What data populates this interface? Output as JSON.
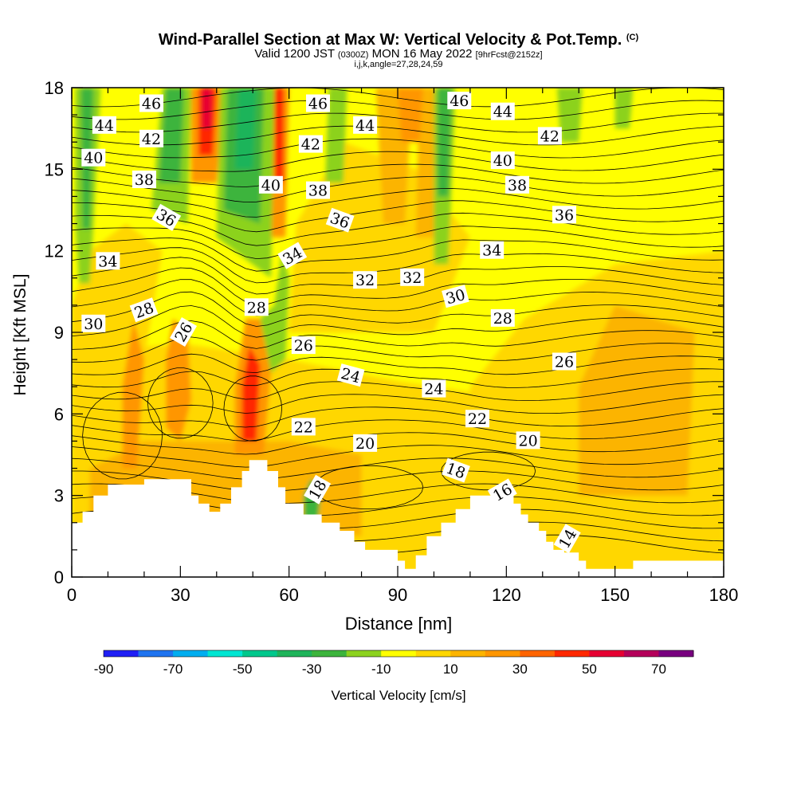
{
  "title": {
    "main": "Wind-Parallel Section at Max W: Vertical Velocity & Pot.Temp.",
    "copyright": "(C)",
    "valid": "Valid 1200 JST",
    "utc": "(0300Z)",
    "date": "MON 16 May 2022",
    "fcst": "[9hrFcst@2152z]",
    "indices": "i,j,k,angle=27,28,24,59"
  },
  "chart_data": {
    "type": "heatmap",
    "xlabel": "Distance [nm]",
    "ylabel": "Height [Kft MSL]",
    "xlim": [
      0,
      180
    ],
    "ylim": [
      0,
      18
    ],
    "x_ticks": [
      0,
      30,
      60,
      90,
      120,
      150,
      180
    ],
    "y_ticks": [
      0,
      3,
      6,
      9,
      12,
      15,
      18
    ],
    "colorbar": {
      "label": "Vertical Velocity [cm/s]",
      "bounds": [
        -90,
        -80,
        -70,
        -60,
        -50,
        -40,
        -30,
        -20,
        -10,
        0,
        10,
        20,
        30,
        40,
        50,
        60,
        70,
        80
      ],
      "tick_labels": [
        -90,
        -70,
        -50,
        -30,
        -10,
        10,
        30,
        50,
        70
      ],
      "colors": [
        "#1f1ff5",
        "#1f74f0",
        "#00aef0",
        "#00e6d2",
        "#00c88c",
        "#1eb45a",
        "#3cb43c",
        "#8cd21e",
        "#ffff00",
        "#ffd700",
        "#fcb400",
        "#ff9600",
        "#ff6400",
        "#ff2800",
        "#e60032",
        "#b4005a",
        "#78007f"
      ]
    },
    "terrain": [
      [
        0,
        2.0
      ],
      [
        3,
        2.0
      ],
      [
        3,
        2.4
      ],
      [
        6,
        2.4
      ],
      [
        6,
        3.0
      ],
      [
        10,
        3.0
      ],
      [
        10,
        3.4
      ],
      [
        20,
        3.4
      ],
      [
        20,
        3.6
      ],
      [
        33,
        3.6
      ],
      [
        33,
        3.0
      ],
      [
        35,
        3.0
      ],
      [
        35,
        2.7
      ],
      [
        38,
        2.7
      ],
      [
        38,
        2.4
      ],
      [
        41,
        2.4
      ],
      [
        41,
        2.7
      ],
      [
        44,
        2.7
      ],
      [
        44,
        3.3
      ],
      [
        47,
        3.3
      ],
      [
        47,
        3.9
      ],
      [
        49,
        3.9
      ],
      [
        49,
        4.3
      ],
      [
        54,
        4.3
      ],
      [
        54,
        3.9
      ],
      [
        57,
        3.9
      ],
      [
        57,
        3.3
      ],
      [
        59,
        3.3
      ],
      [
        59,
        2.7
      ],
      [
        64,
        2.7
      ],
      [
        64,
        2.3
      ],
      [
        69,
        2.3
      ],
      [
        69,
        2.0
      ],
      [
        74,
        2.0
      ],
      [
        74,
        1.7
      ],
      [
        78,
        1.7
      ],
      [
        78,
        1.3
      ],
      [
        81,
        1.3
      ],
      [
        81,
        1.0
      ],
      [
        90,
        1.0
      ],
      [
        90,
        0.6
      ],
      [
        92,
        0.6
      ],
      [
        92,
        0.3
      ],
      [
        95,
        0.3
      ],
      [
        95,
        0.8
      ],
      [
        98,
        0.8
      ],
      [
        98,
        1.5
      ],
      [
        102,
        1.5
      ],
      [
        102,
        2.0
      ],
      [
        106,
        2.0
      ],
      [
        106,
        2.5
      ],
      [
        110,
        2.5
      ],
      [
        110,
        3.0
      ],
      [
        122,
        3.0
      ],
      [
        122,
        2.7
      ],
      [
        124,
        2.7
      ],
      [
        124,
        2.3
      ],
      [
        126,
        2.3
      ],
      [
        126,
        2.0
      ],
      [
        129,
        2.0
      ],
      [
        129,
        1.7
      ],
      [
        131,
        1.7
      ],
      [
        131,
        1.3
      ],
      [
        133,
        1.3
      ],
      [
        133,
        1.0
      ],
      [
        136,
        1.0
      ],
      [
        136,
        0.9
      ],
      [
        140,
        0.9
      ],
      [
        140,
        0.6
      ],
      [
        142,
        0.6
      ],
      [
        142,
        0.3
      ],
      [
        155,
        0.3
      ],
      [
        155,
        0.6
      ],
      [
        180,
        0.6
      ]
    ],
    "contours": {
      "variable": "Potential Temperature",
      "labels": [
        {
          "text": "46",
          "x": 22,
          "y": 17.4,
          "rot": 0
        },
        {
          "text": "44",
          "x": 9,
          "y": 16.6,
          "rot": 0
        },
        {
          "text": "42",
          "x": 22,
          "y": 16.1,
          "rot": 0
        },
        {
          "text": "40",
          "x": 6,
          "y": 15.4,
          "rot": 0
        },
        {
          "text": "38",
          "x": 20,
          "y": 14.6,
          "rot": 0
        },
        {
          "text": "36",
          "x": 26,
          "y": 13.2,
          "rot": 30
        },
        {
          "text": "34",
          "x": 10,
          "y": 11.6,
          "rot": 0
        },
        {
          "text": "28",
          "x": 20,
          "y": 9.8,
          "rot": -20
        },
        {
          "text": "30",
          "x": 6,
          "y": 9.3,
          "rot": 0
        },
        {
          "text": "26",
          "x": 31,
          "y": 9.0,
          "rot": -60
        },
        {
          "text": "46",
          "x": 68,
          "y": 17.4,
          "rot": 0
        },
        {
          "text": "42",
          "x": 66,
          "y": 15.9,
          "rot": 0
        },
        {
          "text": "44",
          "x": 81,
          "y": 16.6,
          "rot": 0
        },
        {
          "text": "40",
          "x": 55,
          "y": 14.4,
          "rot": 0
        },
        {
          "text": "38",
          "x": 68,
          "y": 14.2,
          "rot": 0
        },
        {
          "text": "36",
          "x": 74,
          "y": 13.1,
          "rot": 20
        },
        {
          "text": "34",
          "x": 61,
          "y": 11.8,
          "rot": -30
        },
        {
          "text": "28",
          "x": 51,
          "y": 9.9,
          "rot": 0
        },
        {
          "text": "32",
          "x": 81,
          "y": 10.9,
          "rot": 0
        },
        {
          "text": "32",
          "x": 94,
          "y": 11.0,
          "rot": 0
        },
        {
          "text": "26",
          "x": 64,
          "y": 8.5,
          "rot": 0
        },
        {
          "text": "24",
          "x": 77,
          "y": 7.4,
          "rot": 15
        },
        {
          "text": "24",
          "x": 100,
          "y": 6.9,
          "rot": 0
        },
        {
          "text": "22",
          "x": 64,
          "y": 5.5,
          "rot": 0
        },
        {
          "text": "20",
          "x": 81,
          "y": 4.9,
          "rot": 0
        },
        {
          "text": "18",
          "x": 68,
          "y": 3.2,
          "rot": -60
        },
        {
          "text": "46",
          "x": 107,
          "y": 17.5,
          "rot": 0
        },
        {
          "text": "44",
          "x": 119,
          "y": 17.1,
          "rot": 0
        },
        {
          "text": "42",
          "x": 132,
          "y": 16.2,
          "rot": 0
        },
        {
          "text": "40",
          "x": 119,
          "y": 15.3,
          "rot": 0
        },
        {
          "text": "38",
          "x": 123,
          "y": 14.4,
          "rot": 0
        },
        {
          "text": "36",
          "x": 136,
          "y": 13.3,
          "rot": 0
        },
        {
          "text": "34",
          "x": 116,
          "y": 12.0,
          "rot": 0
        },
        {
          "text": "30",
          "x": 106,
          "y": 10.3,
          "rot": -15
        },
        {
          "text": "28",
          "x": 119,
          "y": 9.5,
          "rot": 0
        },
        {
          "text": "26",
          "x": 136,
          "y": 7.9,
          "rot": 0
        },
        {
          "text": "22",
          "x": 112,
          "y": 5.8,
          "rot": 0
        },
        {
          "text": "20",
          "x": 126,
          "y": 5.0,
          "rot": 0
        },
        {
          "text": "18",
          "x": 106,
          "y": 3.9,
          "rot": 20
        },
        {
          "text": "16",
          "x": 119,
          "y": 3.1,
          "rot": -30
        },
        {
          "text": "14",
          "x": 137,
          "y": 1.4,
          "rot": -60
        }
      ]
    }
  }
}
